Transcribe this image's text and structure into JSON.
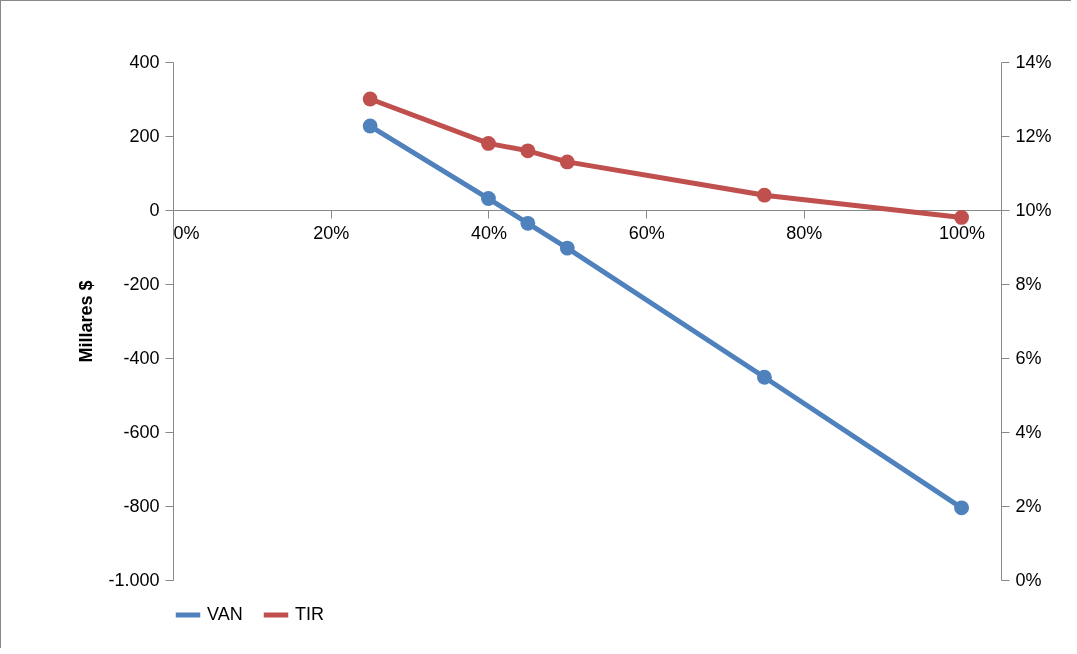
{
  "chart_data": {
    "type": "line",
    "ylabel": "Millares $",
    "x": [
      25,
      40,
      45,
      50,
      75,
      100
    ],
    "xlim": [
      0,
      105
    ],
    "xticks": [
      {
        "value": 0,
        "label": "0%"
      },
      {
        "value": 20,
        "label": "20%"
      },
      {
        "value": 40,
        "label": "40%"
      },
      {
        "value": 60,
        "label": "60%"
      },
      {
        "value": 80,
        "label": "80%"
      },
      {
        "value": 100,
        "label": "100%"
      }
    ],
    "ylim": [
      -1000,
      400
    ],
    "yticks": [
      {
        "value": -1000,
        "label": "-1.000"
      },
      -800,
      -600,
      -400,
      -200,
      0,
      200,
      400
    ],
    "y2lim": [
      0,
      14
    ],
    "y2ticks": [
      {
        "value": 0,
        "label": "0%"
      },
      {
        "value": 2,
        "label": "2%"
      },
      {
        "value": 4,
        "label": "4%"
      },
      {
        "value": 6,
        "label": "6%"
      },
      {
        "value": 8,
        "label": "8%"
      },
      {
        "value": 10,
        "label": "10%"
      },
      {
        "value": 12,
        "label": "12%"
      },
      {
        "value": 14,
        "label": "14%"
      }
    ],
    "series": [
      {
        "name": "VAN",
        "color": "#4f81bd",
        "values": [
          227,
          31,
          -36,
          -103,
          -452,
          -805
        ]
      },
      {
        "name": "TIR",
        "color": "#c0504d",
        "axis": "y2",
        "values": [
          13.0,
          11.8,
          11.6,
          11.3,
          10.4,
          9.8
        ]
      }
    ],
    "marker": "circle",
    "line_style": "solid",
    "grid": false,
    "legend": "bottom"
  }
}
